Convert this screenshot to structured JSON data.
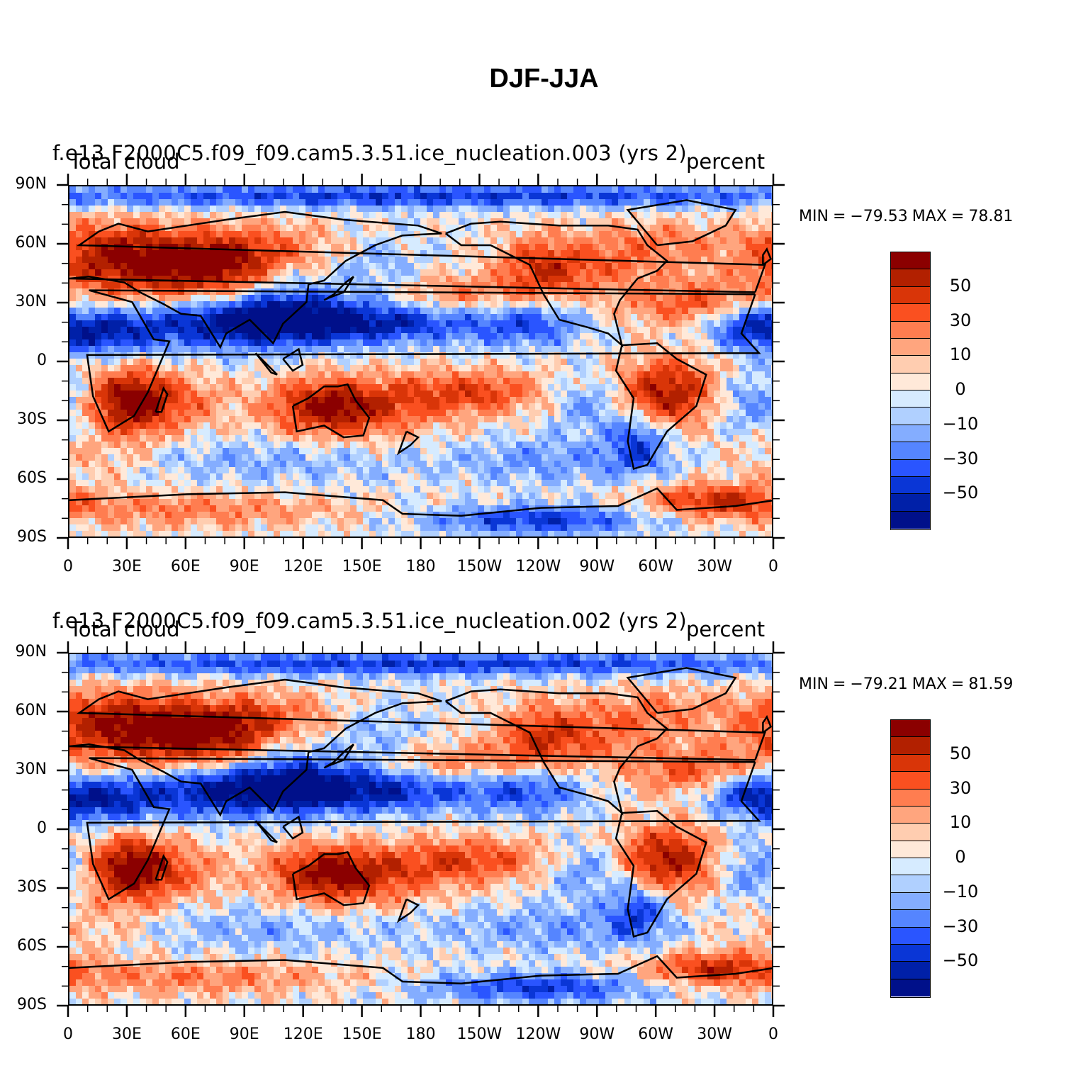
{
  "figure": {
    "title": "DJF-JJA"
  },
  "panels": [
    {
      "case_title": "f.e13.F2000C5.f09_f09.cam5.3.51.ice_nucleation.003 (yrs 2)",
      "variable": "Total cloud",
      "units": "percent",
      "min_label": "MIN",
      "min_value": "−79.53",
      "max_label": "MAX",
      "max_value": "78.81"
    },
    {
      "case_title": "f.e13.F2000C5.f09_f09.cam5.3.51.ice_nucleation.002 (yrs 2)",
      "variable": "Total cloud",
      "units": "percent",
      "min_label": "MIN",
      "min_value": "−79.21",
      "max_label": "MAX",
      "max_value": "81.59"
    }
  ],
  "axes": {
    "lat_labels": [
      "90N",
      "60N",
      "30N",
      "0",
      "30S",
      "60S",
      "90S"
    ],
    "lon_labels": [
      "0",
      "30E",
      "60E",
      "90E",
      "120E",
      "150E",
      "180",
      "150W",
      "120W",
      "90W",
      "60W",
      "30W",
      "0"
    ],
    "lon_range": [
      0,
      360
    ],
    "lat_range": [
      -90,
      90
    ]
  },
  "colorbar": {
    "labels": [
      "50",
      "30",
      "10",
      "0",
      "−10",
      "−30",
      "−50"
    ],
    "colors": [
      "#8b0000",
      "#b22000",
      "#d93508",
      "#fa5020",
      "#ff7d50",
      "#ffa57e",
      "#ffcdb0",
      "#ffe9d9",
      "#d6ebff",
      "#b0d0ff",
      "#84adff",
      "#5585ff",
      "#2a55ff",
      "#0a36d6",
      "#0020a8",
      "#00108a"
    ]
  },
  "chart_data": [
    {
      "type": "heatmap",
      "title": "f.e13.F2000C5.f09_f09.cam5.3.51.ice_nucleation.003 (yrs 2)",
      "variable": "Total cloud",
      "units": "percent",
      "difference": "DJF-JJA",
      "min": -79.53,
      "max": 78.81,
      "contour_levels": [
        -70,
        -60,
        -50,
        -40,
        -30,
        -20,
        -10,
        -5,
        0,
        5,
        10,
        20,
        30,
        40,
        50,
        60,
        70
      ],
      "xlim": [
        0,
        360
      ],
      "ylim": [
        -90,
        90
      ]
    },
    {
      "type": "heatmap",
      "title": "f.e13.F2000C5.f09_f09.cam5.3.51.ice_nucleation.002 (yrs 2)",
      "variable": "Total cloud",
      "units": "percent",
      "difference": "DJF-JJA",
      "min": -79.21,
      "max": 81.59,
      "contour_levels": [
        -70,
        -60,
        -50,
        -40,
        -30,
        -20,
        -10,
        -5,
        0,
        5,
        10,
        20,
        30,
        40,
        50,
        60,
        70
      ],
      "xlim": [
        0,
        360
      ],
      "ylim": [
        -90,
        90
      ]
    }
  ]
}
